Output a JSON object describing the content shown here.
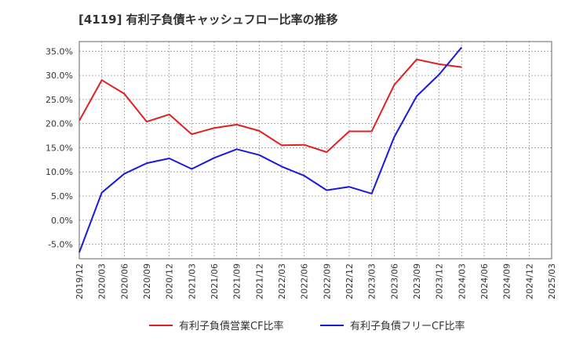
{
  "chart_data": {
    "type": "line",
    "title": "[4119]  有利子負債キャッシュフロー比率の推移",
    "x_tick_labels": [
      "2019/12",
      "2020/03",
      "2020/06",
      "2020/09",
      "2020/12",
      "2021/03",
      "2021/06",
      "2021/09",
      "2021/12",
      "2022/03",
      "2022/06",
      "2022/09",
      "2022/12",
      "2023/03",
      "2023/06",
      "2023/09",
      "2023/12",
      "2024/03",
      "2024/06",
      "2024/09",
      "2024/12",
      "2025/03"
    ],
    "y_tick_labels": [
      "35.0%",
      "30.0%",
      "25.0%",
      "20.0%",
      "15.0%",
      "10.0%",
      "5.0%",
      "0.0%",
      "-5.0%"
    ],
    "y_ticks": [
      35,
      30,
      25,
      20,
      15,
      10,
      5,
      0,
      -5
    ],
    "ylim": [
      -8,
      37
    ],
    "grid": true,
    "legend_position": "bottom",
    "series": [
      {
        "name": "有利子負債営業CF比率",
        "color": "#e02020",
        "values": [
          20.6,
          29.0,
          26.2,
          20.4,
          21.9,
          17.8,
          19.1,
          19.8,
          18.5,
          15.5,
          15.6,
          14.1,
          18.4,
          18.4,
          28.0,
          33.3,
          32.3,
          31.7,
          null,
          null,
          null,
          null
        ]
      },
      {
        "name": "有利子負債フリーCF比率",
        "color": "#1a1adb",
        "values": [
          -6.7,
          5.7,
          9.6,
          11.8,
          12.8,
          10.6,
          12.9,
          14.7,
          13.5,
          11.1,
          9.2,
          6.2,
          6.9,
          5.5,
          17.2,
          25.7,
          30.2,
          35.8,
          null,
          null,
          null,
          null
        ]
      }
    ]
  }
}
